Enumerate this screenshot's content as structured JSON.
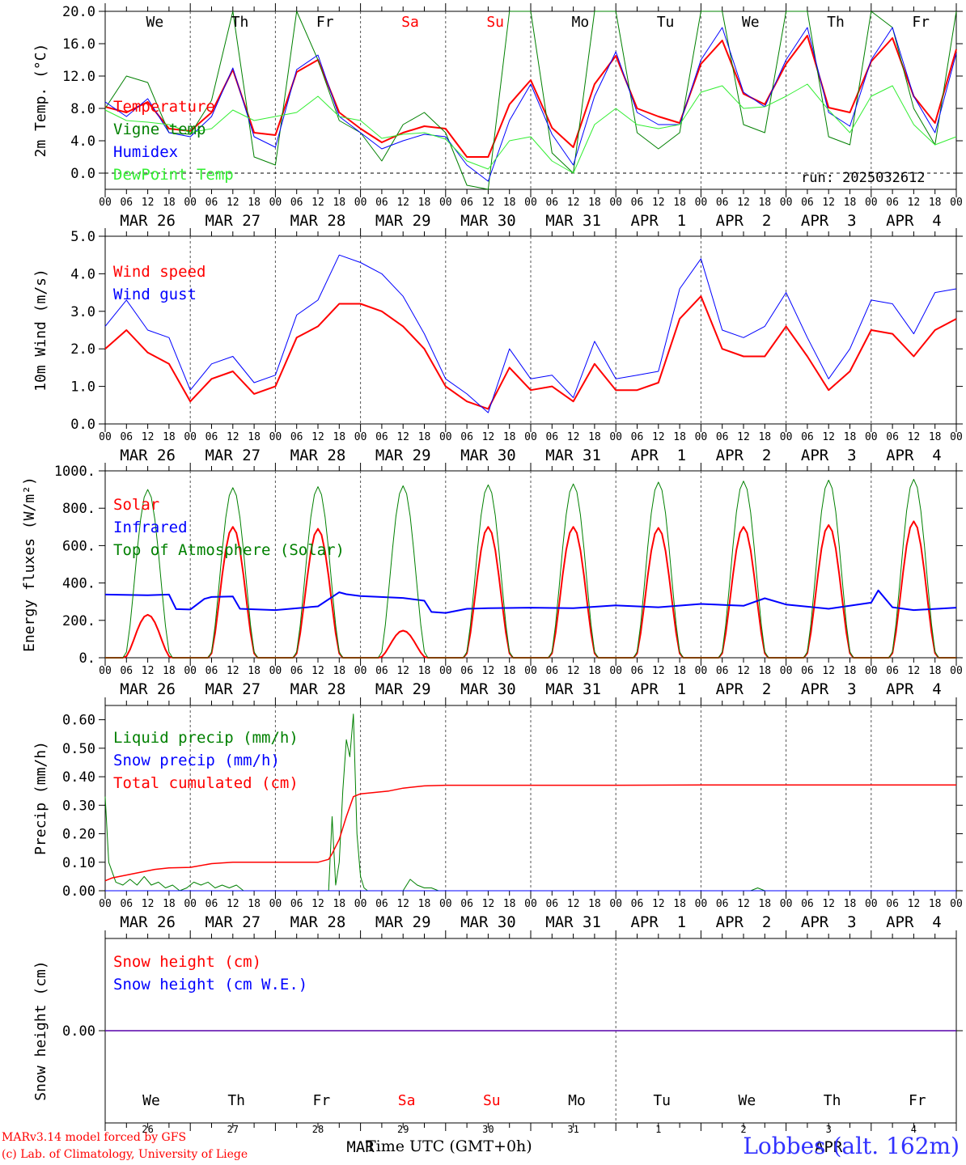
{
  "chart_data": [
    {
      "id": "temp",
      "type": "line",
      "ylabel": "2m Temp. (°C)",
      "ylim": [
        -2,
        20
      ],
      "yticks": [
        0,
        4,
        8,
        12,
        16,
        20
      ],
      "ytick_labels": [
        "0.0",
        "4.0",
        "8.0",
        "12.0",
        "16.0",
        "20.0"
      ],
      "zero_line": true,
      "x_range_hours": [
        0,
        240
      ],
      "annotation": "run: 2025032612",
      "day_labels_top": [
        {
          "label": "We",
          "color": "#000000"
        },
        {
          "label": "Th",
          "color": "#000000"
        },
        {
          "label": "Fr",
          "color": "#000000"
        },
        {
          "label": "Sa",
          "color": "#ff0000"
        },
        {
          "label": "Su",
          "color": "#ff0000"
        },
        {
          "label": "Mo",
          "color": "#000000"
        },
        {
          "label": "Tu",
          "color": "#000000"
        },
        {
          "label": "We",
          "color": "#000000"
        },
        {
          "label": "Th",
          "color": "#000000"
        },
        {
          "label": "Fr",
          "color": "#000000"
        }
      ],
      "series": [
        {
          "name": "Temperature",
          "color": "#ff0000",
          "width": 2,
          "x": [
            0,
            6,
            12,
            18,
            24,
            30,
            36,
            42,
            48,
            54,
            60,
            66,
            72,
            78,
            84,
            90,
            96,
            102,
            108,
            114,
            120,
            126,
            132,
            138,
            144,
            150,
            156,
            162,
            168,
            174,
            180,
            186,
            192,
            198,
            204,
            210,
            216,
            222,
            228,
            234,
            240
          ],
          "y": [
            8.2,
            7.5,
            8.8,
            5.5,
            5.2,
            7.5,
            12.8,
            5.0,
            4.7,
            12.5,
            14.0,
            7.5,
            5.5,
            3.8,
            5.0,
            5.8,
            5.5,
            2.0,
            2.0,
            8.5,
            11.5,
            5.6,
            3.2,
            11.0,
            14.5,
            8.0,
            7.0,
            6.2,
            13.5,
            16.4,
            9.8,
            8.5,
            13.5,
            17.0,
            8.1,
            7.5,
            13.8,
            16.7,
            9.5,
            6.2,
            15.3
          ]
        },
        {
          "name": "Vigne temp",
          "color": "#008000",
          "width": 1,
          "x": [
            0,
            6,
            12,
            18,
            24,
            30,
            36,
            42,
            48,
            54,
            60,
            66,
            72,
            78,
            84,
            90,
            96,
            102,
            108,
            114,
            120,
            126,
            132,
            138,
            144,
            150,
            156,
            162,
            168,
            174,
            180,
            186,
            192,
            198,
            204,
            210,
            216,
            222,
            228,
            234,
            240
          ],
          "y": [
            8.0,
            12.0,
            11.2,
            5.0,
            4.8,
            9.0,
            22.0,
            2.0,
            1.0,
            22.0,
            14.0,
            6.5,
            5.0,
            1.5,
            6.0,
            7.5,
            5.0,
            -1.5,
            -3.0,
            20.0,
            24.0,
            2.5,
            0.0,
            20.0,
            25.0,
            5.0,
            3.0,
            5.0,
            22.0,
            20.0,
            6.0,
            5.0,
            22.0,
            24.0,
            4.5,
            3.5,
            22.0,
            18.0,
            8.0,
            3.5,
            20.0
          ]
        },
        {
          "name": "Humidex",
          "color": "#0000ff",
          "width": 1,
          "x": [
            0,
            6,
            12,
            18,
            24,
            30,
            36,
            42,
            48,
            54,
            60,
            66,
            72,
            78,
            84,
            90,
            96,
            102,
            108,
            114,
            120,
            126,
            132,
            138,
            144,
            150,
            156,
            162,
            168,
            174,
            180,
            186,
            192,
            198,
            204,
            210,
            216,
            222,
            228,
            234,
            240
          ],
          "y": [
            8.8,
            7.0,
            9.2,
            5.0,
            4.5,
            7.0,
            13.0,
            4.5,
            3.2,
            12.8,
            14.6,
            7.0,
            5.0,
            3.0,
            4.0,
            4.8,
            4.5,
            1.0,
            -1.0,
            6.5,
            11.0,
            4.8,
            1.0,
            9.5,
            15.0,
            7.5,
            6.0,
            6.0,
            14.0,
            18.0,
            10.0,
            8.2,
            14.0,
            18.0,
            7.5,
            5.8,
            14.0,
            18.0,
            9.5,
            5.0,
            14.8
          ]
        },
        {
          "name": "DewPoint Temp",
          "color": "#33ee33",
          "width": 1,
          "x": [
            0,
            6,
            12,
            18,
            24,
            30,
            36,
            42,
            48,
            54,
            60,
            66,
            72,
            78,
            84,
            90,
            96,
            102,
            108,
            114,
            120,
            126,
            132,
            138,
            144,
            150,
            156,
            162,
            168,
            174,
            180,
            186,
            192,
            198,
            204,
            210,
            216,
            222,
            228,
            234,
            240
          ],
          "y": [
            7.8,
            6.5,
            6.3,
            6.0,
            5.0,
            5.5,
            7.8,
            6.5,
            7.0,
            7.5,
            9.5,
            7.0,
            6.5,
            4.3,
            4.8,
            5.0,
            4.2,
            1.5,
            0.5,
            4.0,
            4.5,
            1.5,
            0.0,
            6.0,
            8.0,
            6.0,
            5.5,
            6.0,
            10.0,
            10.8,
            8.0,
            8.2,
            9.5,
            11.0,
            7.8,
            5.0,
            9.5,
            10.8,
            6.0,
            3.5,
            4.5
          ]
        }
      ]
    },
    {
      "id": "wind",
      "type": "line",
      "ylabel": "10m Wind (m/s)",
      "ylim": [
        0,
        5
      ],
      "yticks": [
        0,
        1,
        2,
        3,
        4,
        5
      ],
      "ytick_labels": [
        "0.0",
        "1.0",
        "2.0",
        "3.0",
        "4.0",
        "5.0"
      ],
      "x_range_hours": [
        0,
        240
      ],
      "series": [
        {
          "name": "Wind speed",
          "color": "#ff0000",
          "width": 2,
          "x": [
            0,
            6,
            12,
            18,
            24,
            30,
            36,
            42,
            48,
            54,
            60,
            66,
            72,
            78,
            84,
            90,
            96,
            102,
            108,
            114,
            120,
            126,
            132,
            138,
            144,
            150,
            156,
            162,
            168,
            174,
            180,
            186,
            192,
            198,
            204,
            210,
            216,
            222,
            228,
            234,
            240
          ],
          "y": [
            2.0,
            2.5,
            1.9,
            1.6,
            0.6,
            1.2,
            1.4,
            0.8,
            1.0,
            2.3,
            2.6,
            3.2,
            3.2,
            3.0,
            2.6,
            2.0,
            1.0,
            0.6,
            0.4,
            1.5,
            0.9,
            1.0,
            0.6,
            1.6,
            0.9,
            0.9,
            1.1,
            2.8,
            3.4,
            2.0,
            1.8,
            1.8,
            2.6,
            1.8,
            0.9,
            1.4,
            2.5,
            2.4,
            1.8,
            2.5,
            2.8
          ]
        },
        {
          "name": "Wind gust",
          "color": "#0000ff",
          "width": 1,
          "x": [
            0,
            6,
            12,
            18,
            24,
            30,
            36,
            42,
            48,
            54,
            60,
            66,
            72,
            78,
            84,
            90,
            96,
            102,
            108,
            114,
            120,
            126,
            132,
            138,
            144,
            150,
            156,
            162,
            168,
            174,
            180,
            186,
            192,
            198,
            204,
            210,
            216,
            222,
            228,
            234,
            240
          ],
          "y": [
            2.6,
            3.3,
            2.5,
            2.3,
            0.9,
            1.6,
            1.8,
            1.1,
            1.3,
            2.9,
            3.3,
            4.5,
            4.3,
            4.0,
            3.4,
            2.4,
            1.2,
            0.8,
            0.3,
            2.0,
            1.2,
            1.3,
            0.7,
            2.2,
            1.2,
            1.3,
            1.4,
            3.6,
            4.4,
            2.5,
            2.3,
            2.6,
            3.5,
            2.3,
            1.2,
            2.0,
            3.3,
            3.2,
            2.4,
            3.5,
            3.6
          ]
        }
      ]
    },
    {
      "id": "energy",
      "type": "line",
      "ylabel": "Energy fluxes (W/m²)",
      "ylim": [
        0,
        1000
      ],
      "yticks": [
        0,
        200,
        400,
        600,
        800,
        1000
      ],
      "ytick_labels": [
        "0.",
        "200.",
        "400.",
        "600.",
        "800.",
        "1000."
      ],
      "x_range_hours": [
        0,
        240
      ],
      "series": [
        {
          "name": "Solar",
          "color": "#ff0000",
          "width": 2,
          "day_peaks": [
            230,
            700,
            690,
            145,
            700,
            700,
            695,
            700,
            710,
            730
          ]
        },
        {
          "name": "Infrared",
          "color": "#0000ff",
          "width": 2,
          "x": [
            0,
            12,
            18,
            20,
            24,
            28,
            30,
            36,
            38,
            48,
            60,
            66,
            68,
            72,
            84,
            90,
            92,
            96,
            102,
            108,
            120,
            132,
            144,
            156,
            168,
            180,
            186,
            192,
            204,
            216,
            218,
            222,
            228,
            240
          ],
          "y": [
            338,
            334,
            338,
            260,
            258,
            315,
            325,
            328,
            262,
            255,
            275,
            350,
            340,
            330,
            320,
            305,
            245,
            240,
            262,
            265,
            268,
            265,
            280,
            270,
            288,
            278,
            318,
            285,
            262,
            295,
            360,
            270,
            255,
            268
          ]
        },
        {
          "name": "Top of Atmosphere (Solar)",
          "color": "#008000",
          "width": 1,
          "day_peaks": [
            900,
            910,
            915,
            920,
            925,
            930,
            940,
            945,
            950,
            955
          ]
        }
      ]
    },
    {
      "id": "precip",
      "type": "line",
      "ylabel": "Precip (mm/h)",
      "ylim": [
        0,
        0.65
      ],
      "yticks": [
        0,
        0.1,
        0.2,
        0.3,
        0.4,
        0.5,
        0.6
      ],
      "ytick_labels": [
        "0.00",
        "0.10",
        "0.20",
        "0.30",
        "0.40",
        "0.50",
        "0.60"
      ],
      "x_range_hours": [
        0,
        240
      ],
      "series": [
        {
          "name": "Liquid precip (mm/h)",
          "color": "#008000",
          "width": 1,
          "x": [
            0,
            1,
            3,
            5,
            7,
            9,
            11,
            13,
            15,
            17,
            19,
            21,
            23,
            25,
            27,
            29,
            31,
            33,
            35,
            37,
            39,
            41,
            63,
            64,
            65,
            66,
            67,
            68,
            69,
            70,
            71,
            72,
            73,
            74,
            75,
            76,
            77,
            78,
            80,
            82,
            84,
            86,
            88,
            90,
            92,
            94,
            96,
            180,
            182,
            184,
            186,
            240
          ],
          "y": [
            0.33,
            0.1,
            0.03,
            0.02,
            0.04,
            0.02,
            0.05,
            0.02,
            0.03,
            0.01,
            0.02,
            0.0,
            0.01,
            0.03,
            0.02,
            0.03,
            0.01,
            0.02,
            0.01,
            0.02,
            0.0,
            0.0,
            0.0,
            0.26,
            0.02,
            0.1,
            0.35,
            0.53,
            0.47,
            0.62,
            0.2,
            0.05,
            0.01,
            0.0,
            0.0,
            0.0,
            0.0,
            0.0,
            0.0,
            0.0,
            0.0,
            0.04,
            0.02,
            0.01,
            0.01,
            0.0,
            0.0,
            0.0,
            0.0,
            0.01,
            0.0,
            0.0
          ]
        },
        {
          "name": "Snow precip (mm/h)",
          "color": "#0000ff",
          "width": 1,
          "x": [
            0,
            240
          ],
          "y": [
            0,
            0
          ]
        },
        {
          "name": "Total cumulated (cm)",
          "color": "#ff0000",
          "width": 1.5,
          "x": [
            0,
            2,
            6,
            10,
            14,
            18,
            24,
            30,
            36,
            42,
            48,
            54,
            60,
            63,
            64,
            66,
            68,
            70,
            72,
            76,
            80,
            84,
            90,
            96,
            120,
            144,
            168,
            192,
            216,
            240
          ],
          "y": [
            0.035,
            0.045,
            0.055,
            0.065,
            0.075,
            0.08,
            0.082,
            0.095,
            0.1,
            0.1,
            0.1,
            0.1,
            0.1,
            0.11,
            0.13,
            0.18,
            0.26,
            0.33,
            0.34,
            0.345,
            0.35,
            0.36,
            0.368,
            0.37,
            0.37,
            0.37,
            0.371,
            0.371,
            0.371,
            0.371
          ]
        }
      ]
    },
    {
      "id": "snow",
      "type": "line",
      "ylabel": "Snow height (cm)",
      "ylim": [
        -1,
        1
      ],
      "yticks": [
        0
      ],
      "ytick_labels": [
        "0.00"
      ],
      "x_range_hours": [
        0,
        240
      ],
      "series": [
        {
          "name": "Snow height (cm)",
          "color": "#ff0000",
          "width": 1.5,
          "x": [
            0,
            240
          ],
          "y": [
            0,
            0
          ]
        },
        {
          "name": "Snow height (cm W.E.)",
          "color": "#0000ff",
          "width": 1,
          "x": [
            0,
            240
          ],
          "y": [
            0,
            0
          ]
        }
      ]
    }
  ],
  "x_axis": {
    "hour_labels": [
      "00",
      "06",
      "12",
      "18"
    ],
    "last_hour_label": "00",
    "date_labels": [
      "MAR 26",
      "MAR 27",
      "MAR 28",
      "MAR 29",
      "MAR 30",
      "MAR 31",
      "APR  1",
      "APR  2",
      "APR  3",
      "APR  4"
    ],
    "bottom_day_numbers": [
      "26",
      "27",
      "28",
      "29",
      "30",
      "31",
      "1",
      "2",
      "3",
      "4"
    ],
    "bottom_month_left": "MAR",
    "bottom_month_right": "APR",
    "title": "Time UTC (GMT+0h)"
  },
  "footer": {
    "line1": "MARv3.14 model forced by GFS",
    "line2": "(c) Lab. of Climatology, University of Liege",
    "station": "Lobbes (alt. 162m)"
  }
}
